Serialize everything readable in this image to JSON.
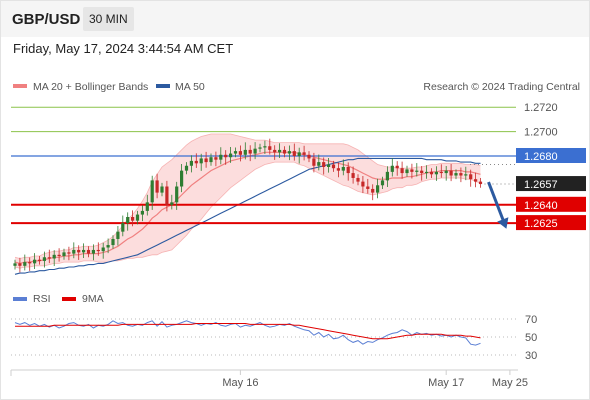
{
  "header": {
    "pair": "GBP/USD",
    "timeframe": "30 MIN",
    "datetime": "Friday, May 17, 2024 3:44:54 AM CET"
  },
  "legend": {
    "ma20": "MA 20 + Bollinger Bands",
    "ma50": "MA 50",
    "credit": "Research © 2024 Trading Central",
    "rsi": "RSI",
    "ma9": "9MA"
  },
  "colors": {
    "up": "#2e7d32",
    "down": "#c62828",
    "ma20": "#f08080",
    "band": "#fbd5d5",
    "ma50": "#2c5aa0",
    "resistance": "#8bc34a",
    "pivot": "#3b6fd1",
    "support": "#e00000",
    "last": "#222222",
    "rsi": "#5b7fd4",
    "rsi_ma": "#e00000",
    "arrow": "#2c5aa0"
  },
  "chart_data": [
    {
      "type": "candlestick",
      "ylim": [
        1.258,
        1.273
      ],
      "levels": [
        {
          "value": 1.272,
          "label": "1.2720",
          "kind": "resistance"
        },
        {
          "value": 1.27,
          "label": "1.2700",
          "kind": "resistance"
        },
        {
          "value": 1.268,
          "label": "1.2680",
          "kind": "pivot"
        },
        {
          "value": 1.2657,
          "label": "1.2657",
          "kind": "last"
        },
        {
          "value": 1.264,
          "label": "1.2640",
          "kind": "support"
        },
        {
          "value": 1.2625,
          "label": "1.2625",
          "kind": "support"
        }
      ],
      "x_ticks": [
        {
          "index": 46,
          "label": "May 16"
        },
        {
          "index": 88,
          "label": "May 17"
        },
        {
          "index": 101,
          "label": "May 25"
        }
      ],
      "closes": [
        1.2592,
        1.259,
        1.2593,
        1.2592,
        1.2595,
        1.2594,
        1.2597,
        1.2596,
        1.2599,
        1.2598,
        1.2601,
        1.26,
        1.2603,
        1.2601,
        1.2603,
        1.26,
        1.2603,
        1.2602,
        1.2605,
        1.2607,
        1.2612,
        1.2618,
        1.2625,
        1.263,
        1.2627,
        1.2632,
        1.2635,
        1.2642,
        1.266,
        1.265,
        1.2655,
        1.264,
        1.2642,
        1.2655,
        1.2668,
        1.2672,
        1.2676,
        1.2674,
        1.2678,
        1.2675,
        1.2679,
        1.2677,
        1.2681,
        1.2679,
        1.2682,
        1.2684,
        1.2681,
        1.2685,
        1.2682,
        1.2686,
        1.2687,
        1.2688,
        1.2685,
        1.2683,
        1.2685,
        1.2682,
        1.2684,
        1.268,
        1.2683,
        1.2681,
        1.2678,
        1.2672,
        1.2675,
        1.2671,
        1.2673,
        1.267,
        1.2668,
        1.2671,
        1.2666,
        1.2662,
        1.2659,
        1.2655,
        1.2653,
        1.265,
        1.2656,
        1.266,
        1.2667,
        1.2672,
        1.267,
        1.2666,
        1.2669,
        1.2667,
        1.2668,
        1.2666,
        1.2667,
        1.2665,
        1.2667,
        1.2666,
        1.2668,
        1.2664,
        1.2666,
        1.2664,
        1.2665,
        1.2661,
        1.2659,
        1.2657
      ],
      "ma20": [
        1.2593,
        1.2592,
        1.2593,
        1.2593,
        1.2594,
        1.2594,
        1.2595,
        1.2596,
        1.2597,
        1.2597,
        1.2598,
        1.2598,
        1.2599,
        1.2599,
        1.26,
        1.26,
        1.26,
        1.26,
        1.2601,
        1.2602,
        1.2604,
        1.2606,
        1.2609,
        1.2612,
        1.2614,
        1.2617,
        1.262,
        1.2624,
        1.2629,
        1.2632,
        1.2636,
        1.2638,
        1.264,
        1.2644,
        1.2648,
        1.2652,
        1.2656,
        1.2659,
        1.2662,
        1.2665,
        1.2668,
        1.267,
        1.2672,
        1.2674,
        1.2676,
        1.2677,
        1.2678,
        1.2679,
        1.268,
        1.2681,
        1.2682,
        1.2683,
        1.2683,
        1.2683,
        1.2683,
        1.2683,
        1.2683,
        1.2683,
        1.2682,
        1.2681,
        1.268,
        1.2679,
        1.2678,
        1.2677,
        1.2676,
        1.2675,
        1.2674,
        1.2673,
        1.2672,
        1.267,
        1.2668,
        1.2666,
        1.2664,
        1.2662,
        1.2661,
        1.2661,
        1.2661,
        1.2662,
        1.2662,
        1.2662,
        1.2663,
        1.2663,
        1.2664,
        1.2665,
        1.2666,
        1.2667,
        1.2667,
        1.2668,
        1.2668,
        1.2668,
        1.2668,
        1.2668,
        1.2667,
        1.2667,
        1.2666,
        1.2665
      ],
      "band_width": [
        0.0004,
        0.0004,
        0.0004,
        0.0004,
        0.0004,
        0.0004,
        0.0005,
        0.0005,
        0.0005,
        0.0005,
        0.0005,
        0.0005,
        0.0006,
        0.0006,
        0.0006,
        0.0006,
        0.0006,
        0.0007,
        0.0008,
        0.0009,
        0.001,
        0.0012,
        0.0014,
        0.0016,
        0.0018,
        0.002,
        0.0023,
        0.0026,
        0.003,
        0.0033,
        0.0035,
        0.0036,
        0.0037,
        0.0037,
        0.0037,
        0.0037,
        0.0036,
        0.0035,
        0.0034,
        0.0032,
        0.003,
        0.0028,
        0.0026,
        0.0024,
        0.0022,
        0.002,
        0.0018,
        0.0016,
        0.0014,
        0.0012,
        0.0011,
        0.001,
        0.0009,
        0.0008,
        0.0008,
        0.0008,
        0.0008,
        0.0008,
        0.0009,
        0.0009,
        0.001,
        0.0011,
        0.0012,
        0.0013,
        0.0014,
        0.0015,
        0.0016,
        0.0017,
        0.0017,
        0.0017,
        0.0017,
        0.0016,
        0.0015,
        0.0014,
        0.0012,
        0.0011,
        0.001,
        0.0009,
        0.0008,
        0.0008,
        0.0007,
        0.0007,
        0.0007,
        0.0006,
        0.0006,
        0.0006,
        0.0006,
        0.0006,
        0.0006,
        0.0006,
        0.0006,
        0.0006,
        0.0006,
        0.0006,
        0.0007,
        0.0007
      ],
      "ma50": [
        1.2583,
        1.2584,
        1.2584,
        1.2585,
        1.2585,
        1.2586,
        1.2586,
        1.2587,
        1.2587,
        1.2588,
        1.2588,
        1.2589,
        1.2589,
        1.259,
        1.259,
        1.2591,
        1.2591,
        1.2592,
        1.2592,
        1.2593,
        1.2594,
        1.2595,
        1.2596,
        1.2597,
        1.2598,
        1.2599,
        1.2601,
        1.2603,
        1.2605,
        1.2607,
        1.2609,
        1.2611,
        1.2613,
        1.2615,
        1.2617,
        1.2619,
        1.2621,
        1.2623,
        1.2625,
        1.2627,
        1.2629,
        1.2631,
        1.2633,
        1.2635,
        1.2637,
        1.2639,
        1.2641,
        1.2643,
        1.2645,
        1.2647,
        1.2649,
        1.2651,
        1.2653,
        1.2655,
        1.2657,
        1.2659,
        1.2661,
        1.2663,
        1.2665,
        1.2667,
        1.2669,
        1.267,
        1.2671,
        1.2672,
        1.2673,
        1.2674,
        1.2675,
        1.2676,
        1.2677,
        1.2677,
        1.2678,
        1.2678,
        1.2678,
        1.2678,
        1.2678,
        1.2678,
        1.2678,
        1.2678,
        1.2678,
        1.2678,
        1.2678,
        1.2678,
        1.2678,
        1.2678,
        1.2677,
        1.2677,
        1.2677,
        1.2677,
        1.2676,
        1.2676,
        1.2676,
        1.2675,
        1.2675,
        1.2675,
        1.2674,
        1.2674
      ],
      "projection": {
        "from_index": 95,
        "from_value": 1.2657,
        "to_index": 101,
        "to_value": 1.263
      }
    },
    {
      "type": "line",
      "series_names": [
        "RSI",
        "9MA"
      ],
      "ylim": [
        20,
        80
      ],
      "y_ticks": [
        70,
        50,
        30
      ],
      "rsi": [
        66,
        64,
        66,
        63,
        65,
        62,
        64,
        61,
        63,
        60,
        62,
        65,
        66,
        63,
        62,
        64,
        60,
        63,
        62,
        64,
        68,
        65,
        66,
        63,
        62,
        64,
        63,
        66,
        68,
        62,
        67,
        61,
        63,
        64,
        66,
        68,
        66,
        65,
        63,
        65,
        64,
        66,
        63,
        62,
        64,
        65,
        61,
        63,
        62,
        64,
        66,
        63,
        61,
        62,
        64,
        63,
        65,
        62,
        60,
        58,
        57,
        52,
        55,
        50,
        53,
        48,
        49,
        52,
        47,
        44,
        46,
        42,
        45,
        44,
        47,
        49,
        52,
        54,
        55,
        58,
        56,
        52,
        55,
        53,
        54,
        52,
        53,
        51,
        52,
        50,
        52,
        50,
        49,
        42,
        41,
        43
      ],
      "rsi_ma": [
        62,
        62,
        62,
        62,
        62,
        62,
        62,
        62,
        63,
        63,
        63,
        63,
        63,
        63,
        63,
        63,
        63,
        63,
        63,
        63,
        63,
        63,
        64,
        64,
        64,
        64,
        64,
        64,
        64,
        64,
        64,
        64,
        64,
        64,
        64,
        64,
        64,
        65,
        65,
        65,
        65,
        65,
        65,
        65,
        65,
        65,
        65,
        65,
        64,
        64,
        64,
        64,
        64,
        64,
        64,
        64,
        64,
        63,
        63,
        62,
        61,
        60,
        59,
        58,
        57,
        56,
        55,
        54,
        53,
        52,
        51,
        50,
        49,
        48,
        48,
        48,
        48,
        49,
        50,
        51,
        52,
        52,
        53,
        53,
        53,
        53,
        53,
        53,
        52,
        52,
        52,
        52,
        51,
        51,
        50,
        49
      ]
    }
  ]
}
